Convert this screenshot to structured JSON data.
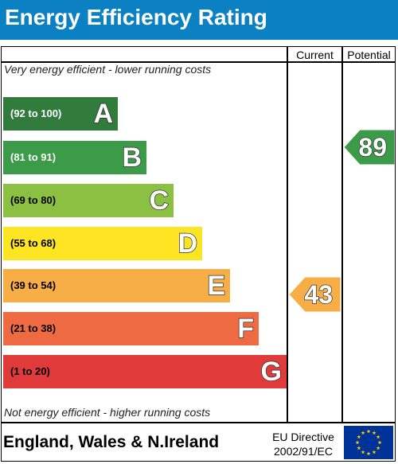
{
  "header": {
    "title": "Energy Efficiency Rating",
    "color": "#0b80c3"
  },
  "columns": {
    "current": "Current",
    "potential": "Potential"
  },
  "notes": {
    "top": "Very energy efficient - lower running costs",
    "bottom": "Not energy efficient - higher running costs"
  },
  "bands": [
    {
      "range": "(92 to 100)",
      "letter": "A",
      "color": "#317b3d",
      "range_color": "#ffffff"
    },
    {
      "range": "(81 to 91)",
      "letter": "B",
      "color": "#3b9b48",
      "range_color": "#ffffff"
    },
    {
      "range": "(69 to 80)",
      "letter": "C",
      "color": "#8cc042",
      "range_color": "#000000"
    },
    {
      "range": "(55 to 68)",
      "letter": "D",
      "color": "#fee524",
      "range_color": "#000000"
    },
    {
      "range": "(39 to 54)",
      "letter": "E",
      "color": "#f8ae47",
      "range_color": "#000000"
    },
    {
      "range": "(21 to 38)",
      "letter": "F",
      "color": "#ee6a42",
      "range_color": "#000000"
    },
    {
      "range": "(1 to 20)",
      "letter": "G",
      "color": "#e03a3b",
      "range_color": "#000000"
    }
  ],
  "current": {
    "value": "43",
    "band": "E",
    "color": "#f8ae47"
  },
  "potential": {
    "value": "89",
    "band": "B",
    "color": "#3b9b48"
  },
  "footer": {
    "region": "England, Wales & N.Ireland",
    "directive_line1": "EU Directive",
    "directive_line2": "2002/91/EC",
    "flag_icon": "eu-flag-icon"
  }
}
